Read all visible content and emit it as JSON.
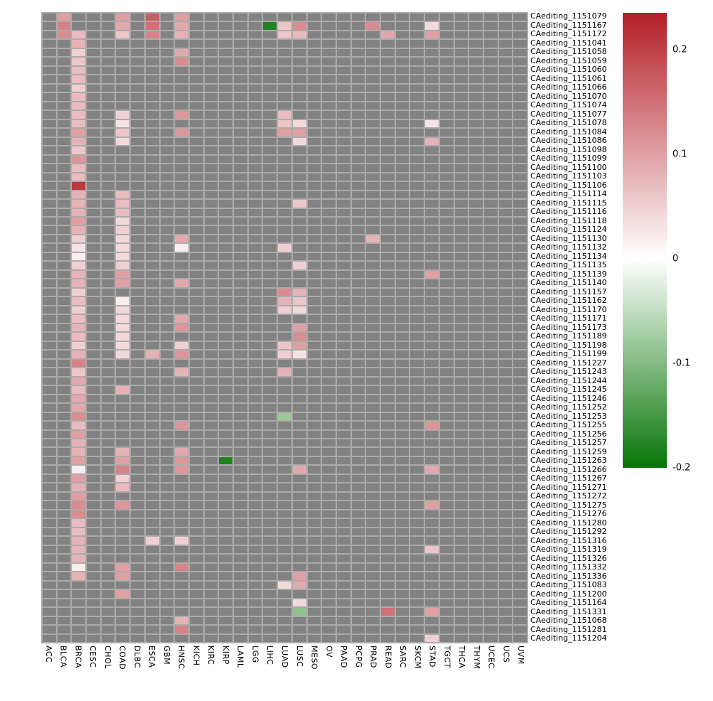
{
  "figure": {
    "background": "#ffffff",
    "na_cell_color": "#828282",
    "grid_line_color": "#ababab",
    "text_color": "#000000"
  },
  "colorbar": {
    "tick_labels": [
      "0.2",
      "0.1",
      "0",
      "-0.1",
      "-0.2"
    ],
    "tick_values": [
      0.2,
      0.1,
      0,
      -0.1,
      -0.2
    ],
    "max_color": "#b41f28",
    "mid_color": "#ffffff",
    "min_color": "#077507"
  },
  "chart_data": {
    "type": "heatmap",
    "title": "",
    "xlabel": "",
    "ylabel": "",
    "value_range": {
      "vmin": -0.2,
      "vmax": 0.235
    },
    "columns": [
      "ACC",
      "BLCA",
      "BRCA",
      "CESC",
      "CHOL",
      "COAD",
      "DLBC",
      "ESCA",
      "GBM",
      "HNSC",
      "KICH",
      "KIRC",
      "KIRP",
      "LAML",
      "LGG",
      "LIHC",
      "LUAD",
      "LUSC",
      "MESO",
      "OV",
      "PAAD",
      "PCPG",
      "PRAD",
      "READ",
      "SARC",
      "SKCM",
      "STAD",
      "TGCT",
      "THCA",
      "THYM",
      "UCEC",
      "UCS",
      "UVM"
    ],
    "rows": [
      "CAediting_1151079",
      "CAediting_1151167",
      "CAediting_1151172",
      "CAediting_1151041",
      "CAediting_1151058",
      "CAediting_1151059",
      "CAediting_1151060",
      "CAediting_1151061",
      "CAediting_1151066",
      "CAediting_1151070",
      "CAediting_1151074",
      "CAediting_1151077",
      "CAediting_1151078",
      "CAediting_1151084",
      "CAediting_1151086",
      "CAediting_1151098",
      "CAediting_1151099",
      "CAediting_1151100",
      "CAediting_1151103",
      "CAediting_1151106",
      "CAediting_1151114",
      "CAediting_1151115",
      "CAediting_1151116",
      "CAediting_1151118",
      "CAediting_1151124",
      "CAediting_1151130",
      "CAediting_1151132",
      "CAediting_1151134",
      "CAediting_1151135",
      "CAediting_1151139",
      "CAediting_1151140",
      "CAediting_1151157",
      "CAediting_1151162",
      "CAediting_1151170",
      "CAediting_1151171",
      "CAediting_1151173",
      "CAediting_1151189",
      "CAediting_1151198",
      "CAediting_1151199",
      "CAediting_1151227",
      "CAediting_1151243",
      "CAediting_1151244",
      "CAediting_1151245",
      "CAediting_1151246",
      "CAediting_1151252",
      "CAediting_1151253",
      "CAediting_1151255",
      "CAediting_1151256",
      "CAediting_1151257",
      "CAediting_1151259",
      "CAediting_1151263",
      "CAediting_1151266",
      "CAediting_1151267",
      "CAediting_1151271",
      "CAediting_1151272",
      "CAediting_1151275",
      "CAediting_1151276",
      "CAediting_1151280",
      "CAediting_1151292",
      "CAediting_1151316",
      "CAediting_1151319",
      "CAediting_1151326",
      "CAediting_1151332",
      "CAediting_1151336",
      "CAediting_1151083",
      "CAediting_1151200",
      "CAediting_1151164",
      "CAediting_1151331",
      "CAediting_1151068",
      "CAediting_1151281",
      "CAediting_1151204"
    ],
    "cells": [
      [
        "CAediting_1151079",
        "BLCA",
        0.1
      ],
      [
        "CAediting_1151079",
        "COAD",
        0.1
      ],
      [
        "CAediting_1151079",
        "ESCA",
        0.17
      ],
      [
        "CAediting_1151079",
        "HNSC",
        0.1
      ],
      [
        "CAediting_1151167",
        "BLCA",
        0.13
      ],
      [
        "CAediting_1151167",
        "COAD",
        0.09
      ],
      [
        "CAediting_1151167",
        "ESCA",
        0.15
      ],
      [
        "CAediting_1151167",
        "HNSC",
        0.09
      ],
      [
        "CAediting_1151167",
        "LIHC",
        -0.18
      ],
      [
        "CAediting_1151167",
        "LUAD",
        0.06
      ],
      [
        "CAediting_1151167",
        "LUSC",
        0.12
      ],
      [
        "CAediting_1151167",
        "PRAD",
        0.12
      ],
      [
        "CAediting_1151167",
        "STAD",
        0.04
      ],
      [
        "CAediting_1151172",
        "BLCA",
        0.12
      ],
      [
        "CAediting_1151172",
        "BRCA",
        0.07
      ],
      [
        "CAediting_1151172",
        "COAD",
        0.06
      ],
      [
        "CAediting_1151172",
        "ESCA",
        0.13
      ],
      [
        "CAediting_1151172",
        "HNSC",
        0.08
      ],
      [
        "CAediting_1151172",
        "LUAD",
        0.06
      ],
      [
        "CAediting_1151172",
        "LUSC",
        0.07
      ],
      [
        "CAediting_1151172",
        "READ",
        0.09
      ],
      [
        "CAediting_1151172",
        "STAD",
        0.1
      ],
      [
        "CAediting_1151041",
        "BRCA",
        0.08
      ],
      [
        "CAediting_1151058",
        "BRCA",
        0.05
      ],
      [
        "CAediting_1151058",
        "HNSC",
        0.09
      ],
      [
        "CAediting_1151059",
        "BRCA",
        0.06
      ],
      [
        "CAediting_1151059",
        "HNSC",
        0.12
      ],
      [
        "CAediting_1151060",
        "BRCA",
        0.07
      ],
      [
        "CAediting_1151061",
        "BRCA",
        0.07
      ],
      [
        "CAediting_1151066",
        "BRCA",
        0.05
      ],
      [
        "CAediting_1151070",
        "BRCA",
        0.07
      ],
      [
        "CAediting_1151074",
        "BRCA",
        0.07
      ],
      [
        "CAediting_1151077",
        "BRCA",
        0.07
      ],
      [
        "CAediting_1151077",
        "COAD",
        0.05
      ],
      [
        "CAediting_1151077",
        "HNSC",
        0.11
      ],
      [
        "CAediting_1151077",
        "LUAD",
        0.07
      ],
      [
        "CAediting_1151078",
        "BRCA",
        0.07
      ],
      [
        "CAediting_1151078",
        "COAD",
        0.03
      ],
      [
        "CAediting_1151078",
        "LUAD",
        0.06
      ],
      [
        "CAediting_1151078",
        "LUSC",
        0.04
      ],
      [
        "CAediting_1151078",
        "STAD",
        0.03
      ],
      [
        "CAediting_1151084",
        "BRCA",
        0.1
      ],
      [
        "CAediting_1151084",
        "COAD",
        0.06
      ],
      [
        "CAediting_1151084",
        "HNSC",
        0.11
      ],
      [
        "CAediting_1151084",
        "LUAD",
        0.1
      ],
      [
        "CAediting_1151084",
        "LUSC",
        0.1
      ],
      [
        "CAediting_1151086",
        "BRCA",
        0.08
      ],
      [
        "CAediting_1151086",
        "COAD",
        0.04
      ],
      [
        "CAediting_1151086",
        "LUSC",
        0.04
      ],
      [
        "CAediting_1151086",
        "STAD",
        0.08
      ],
      [
        "CAediting_1151098",
        "BRCA",
        0.06
      ],
      [
        "CAediting_1151099",
        "BRCA",
        0.11
      ],
      [
        "CAediting_1151100",
        "BRCA",
        0.07
      ],
      [
        "CAediting_1151103",
        "BRCA",
        0.07
      ],
      [
        "CAediting_1151106",
        "BRCA",
        0.21
      ],
      [
        "CAediting_1151114",
        "BRCA",
        0.08
      ],
      [
        "CAediting_1151114",
        "COAD",
        0.07
      ],
      [
        "CAediting_1151115",
        "BRCA",
        0.08
      ],
      [
        "CAediting_1151115",
        "COAD",
        0.07
      ],
      [
        "CAediting_1151115",
        "LUSC",
        0.06
      ],
      [
        "CAediting_1151116",
        "BRCA",
        0.08
      ],
      [
        "CAediting_1151116",
        "COAD",
        0.07
      ],
      [
        "CAediting_1151118",
        "BRCA",
        0.1
      ],
      [
        "CAediting_1151118",
        "COAD",
        0.04
      ],
      [
        "CAediting_1151124",
        "BRCA",
        0.08
      ],
      [
        "CAediting_1151124",
        "COAD",
        0.05
      ],
      [
        "CAediting_1151130",
        "BRCA",
        0.05
      ],
      [
        "CAediting_1151130",
        "COAD",
        0.04
      ],
      [
        "CAediting_1151130",
        "HNSC",
        0.09
      ],
      [
        "CAediting_1151130",
        "PRAD",
        0.08
      ],
      [
        "CAediting_1151132",
        "BRCA",
        0.03
      ],
      [
        "CAediting_1151132",
        "COAD",
        0.04
      ],
      [
        "CAediting_1151132",
        "HNSC",
        0.02
      ],
      [
        "CAediting_1151132",
        "LUAD",
        0.05
      ],
      [
        "CAediting_1151134",
        "BRCA",
        0.02
      ],
      [
        "CAediting_1151134",
        "COAD",
        0.04
      ],
      [
        "CAediting_1151135",
        "BRCA",
        0.05
      ],
      [
        "CAediting_1151135",
        "COAD",
        0.05
      ],
      [
        "CAediting_1151135",
        "LUSC",
        0.05
      ],
      [
        "CAediting_1151139",
        "BRCA",
        0.08
      ],
      [
        "CAediting_1151139",
        "COAD",
        0.1
      ],
      [
        "CAediting_1151139",
        "STAD",
        0.1
      ],
      [
        "CAediting_1151140",
        "BRCA",
        0.08
      ],
      [
        "CAediting_1151140",
        "COAD",
        0.1
      ],
      [
        "CAediting_1151140",
        "HNSC",
        0.09
      ],
      [
        "CAediting_1151157",
        "BRCA",
        0.05
      ],
      [
        "CAediting_1151157",
        "LUAD",
        0.12
      ],
      [
        "CAediting_1151157",
        "LUSC",
        0.08
      ],
      [
        "CAediting_1151162",
        "BRCA",
        0.07
      ],
      [
        "CAediting_1151162",
        "COAD",
        0.02
      ],
      [
        "CAediting_1151162",
        "LUAD",
        0.08
      ],
      [
        "CAediting_1151162",
        "LUSC",
        0.06
      ],
      [
        "CAediting_1151170",
        "BRCA",
        0.05
      ],
      [
        "CAediting_1151170",
        "COAD",
        0.04
      ],
      [
        "CAediting_1151170",
        "LUAD",
        0.05
      ],
      [
        "CAediting_1151170",
        "LUSC",
        0.04
      ],
      [
        "CAediting_1151171",
        "BRCA",
        0.07
      ],
      [
        "CAediting_1151171",
        "COAD",
        0.04
      ],
      [
        "CAediting_1151171",
        "HNSC",
        0.09
      ],
      [
        "CAediting_1151173",
        "BRCA",
        0.08
      ],
      [
        "CAediting_1151173",
        "COAD",
        0.04
      ],
      [
        "CAediting_1151173",
        "HNSC",
        0.11
      ],
      [
        "CAediting_1151173",
        "LUSC",
        0.1
      ],
      [
        "CAediting_1151189",
        "BRCA",
        0.07
      ],
      [
        "CAediting_1151189",
        "COAD",
        0.04
      ],
      [
        "CAediting_1151189",
        "LUSC",
        0.12
      ],
      [
        "CAediting_1151198",
        "BRCA",
        0.05
      ],
      [
        "CAediting_1151198",
        "COAD",
        0.04
      ],
      [
        "CAediting_1151198",
        "HNSC",
        0.05
      ],
      [
        "CAediting_1151198",
        "LUAD",
        0.06
      ],
      [
        "CAediting_1151198",
        "LUSC",
        0.1
      ],
      [
        "CAediting_1151199",
        "BRCA",
        0.08
      ],
      [
        "CAediting_1151199",
        "COAD",
        0.04
      ],
      [
        "CAediting_1151199",
        "ESCA",
        0.08
      ],
      [
        "CAediting_1151199",
        "HNSC",
        0.11
      ],
      [
        "CAediting_1151199",
        "LUAD",
        0.05
      ],
      [
        "CAediting_1151199",
        "LUSC",
        0.03
      ],
      [
        "CAediting_1151227",
        "BRCA",
        0.13
      ],
      [
        "CAediting_1151243",
        "BRCA",
        0.06
      ],
      [
        "CAediting_1151243",
        "HNSC",
        0.08
      ],
      [
        "CAediting_1151243",
        "LUAD",
        0.08
      ],
      [
        "CAediting_1151244",
        "BRCA",
        0.09
      ],
      [
        "CAediting_1151245",
        "BRCA",
        0.07
      ],
      [
        "CAediting_1151245",
        "COAD",
        0.08
      ],
      [
        "CAediting_1151246",
        "BRCA",
        0.09
      ],
      [
        "CAediting_1151252",
        "BRCA",
        0.09
      ],
      [
        "CAediting_1151253",
        "BRCA",
        0.12
      ],
      [
        "CAediting_1151253",
        "LUAD",
        -0.08
      ],
      [
        "CAediting_1151255",
        "BRCA",
        0.07
      ],
      [
        "CAediting_1151255",
        "HNSC",
        0.11
      ],
      [
        "CAediting_1151255",
        "STAD",
        0.11
      ],
      [
        "CAediting_1151256",
        "BRCA",
        0.1
      ],
      [
        "CAediting_1151257",
        "BRCA",
        0.08
      ],
      [
        "CAediting_1151259",
        "BRCA",
        0.08
      ],
      [
        "CAediting_1151259",
        "COAD",
        0.08
      ],
      [
        "CAediting_1151259",
        "HNSC",
        0.09
      ],
      [
        "CAediting_1151263",
        "BRCA",
        0.1
      ],
      [
        "CAediting_1151263",
        "COAD",
        0.1
      ],
      [
        "CAediting_1151263",
        "HNSC",
        0.11
      ],
      [
        "CAediting_1151263",
        "KIRP",
        -0.18
      ],
      [
        "CAediting_1151266",
        "BRCA",
        0.02
      ],
      [
        "CAediting_1151266",
        "COAD",
        0.13
      ],
      [
        "CAediting_1151266",
        "HNSC",
        0.11
      ],
      [
        "CAediting_1151266",
        "LUSC",
        0.09
      ],
      [
        "CAediting_1151266",
        "STAD",
        0.09
      ],
      [
        "CAediting_1151267",
        "BRCA",
        0.1
      ],
      [
        "CAediting_1151267",
        "COAD",
        0.05
      ],
      [
        "CAediting_1151271",
        "BRCA",
        0.08
      ],
      [
        "CAediting_1151271",
        "COAD",
        0.07
      ],
      [
        "CAediting_1151272",
        "BRCA",
        0.1
      ],
      [
        "CAediting_1151275",
        "BRCA",
        0.12
      ],
      [
        "CAediting_1151275",
        "COAD",
        0.11
      ],
      [
        "CAediting_1151275",
        "STAD",
        0.1
      ],
      [
        "CAediting_1151276",
        "BRCA",
        0.12
      ],
      [
        "CAediting_1151280",
        "BRCA",
        0.07
      ],
      [
        "CAediting_1151292",
        "BRCA",
        0.07
      ],
      [
        "CAediting_1151316",
        "BRCA",
        0.08
      ],
      [
        "CAediting_1151316",
        "ESCA",
        0.05
      ],
      [
        "CAediting_1151316",
        "HNSC",
        0.05
      ],
      [
        "CAediting_1151319",
        "BRCA",
        0.08
      ],
      [
        "CAediting_1151319",
        "STAD",
        0.06
      ],
      [
        "CAediting_1151326",
        "BRCA",
        0.08
      ],
      [
        "CAediting_1151332",
        "BRCA",
        0.02
      ],
      [
        "CAediting_1151332",
        "COAD",
        0.1
      ],
      [
        "CAediting_1151332",
        "HNSC",
        0.13
      ],
      [
        "CAediting_1151336",
        "BRCA",
        0.08
      ],
      [
        "CAediting_1151336",
        "COAD",
        0.1
      ],
      [
        "CAediting_1151336",
        "LUSC",
        0.1
      ],
      [
        "CAediting_1151083",
        "LUAD",
        0.04
      ],
      [
        "CAediting_1151083",
        "LUSC",
        0.09
      ],
      [
        "CAediting_1151200",
        "COAD",
        0.1
      ],
      [
        "CAediting_1151164",
        "LUSC",
        0.04
      ],
      [
        "CAediting_1151331",
        "LUSC",
        -0.09
      ],
      [
        "CAediting_1151331",
        "READ",
        0.15
      ],
      [
        "CAediting_1151331",
        "STAD",
        0.1
      ],
      [
        "CAediting_1151068",
        "HNSC",
        0.08
      ],
      [
        "CAediting_1151281",
        "HNSC",
        0.13
      ],
      [
        "CAediting_1151204",
        "STAD",
        0.05
      ]
    ],
    "legend_position": "right",
    "grid": true
  }
}
